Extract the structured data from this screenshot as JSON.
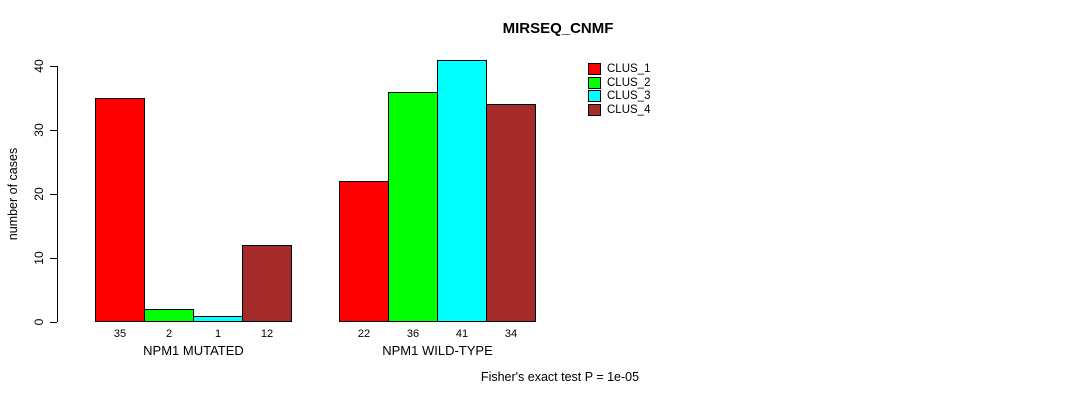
{
  "title": "MIRSEQ_CNMF",
  "y_axis": {
    "label": "number of cases",
    "ticks": [
      0,
      10,
      20,
      30,
      40
    ]
  },
  "footer": "Fisher's exact test P = 1e-05",
  "chart_data": {
    "type": "bar",
    "title": "MIRSEQ_CNMF",
    "categories": [
      "NPM1 MUTATED",
      "NPM1 WILD-TYPE"
    ],
    "series": [
      {
        "name": "CLUS_1",
        "color": "#FF0000",
        "values": [
          35,
          22
        ]
      },
      {
        "name": "CLUS_2",
        "color": "#00FF00",
        "values": [
          2,
          36
        ]
      },
      {
        "name": "CLUS_3",
        "color": "#00FFFF",
        "values": [
          1,
          41
        ]
      },
      {
        "name": "CLUS_4",
        "color": "#A52A2A",
        "values": [
          12,
          34
        ]
      }
    ],
    "ylabel": "number of cases",
    "yticks": [
      0,
      10,
      20,
      30,
      40
    ],
    "ylim": [
      0,
      41
    ],
    "grid": false,
    "bar_value_labels": true,
    "legend_position": "top-right",
    "annotation": "Fisher's exact test P = 1e-05"
  }
}
